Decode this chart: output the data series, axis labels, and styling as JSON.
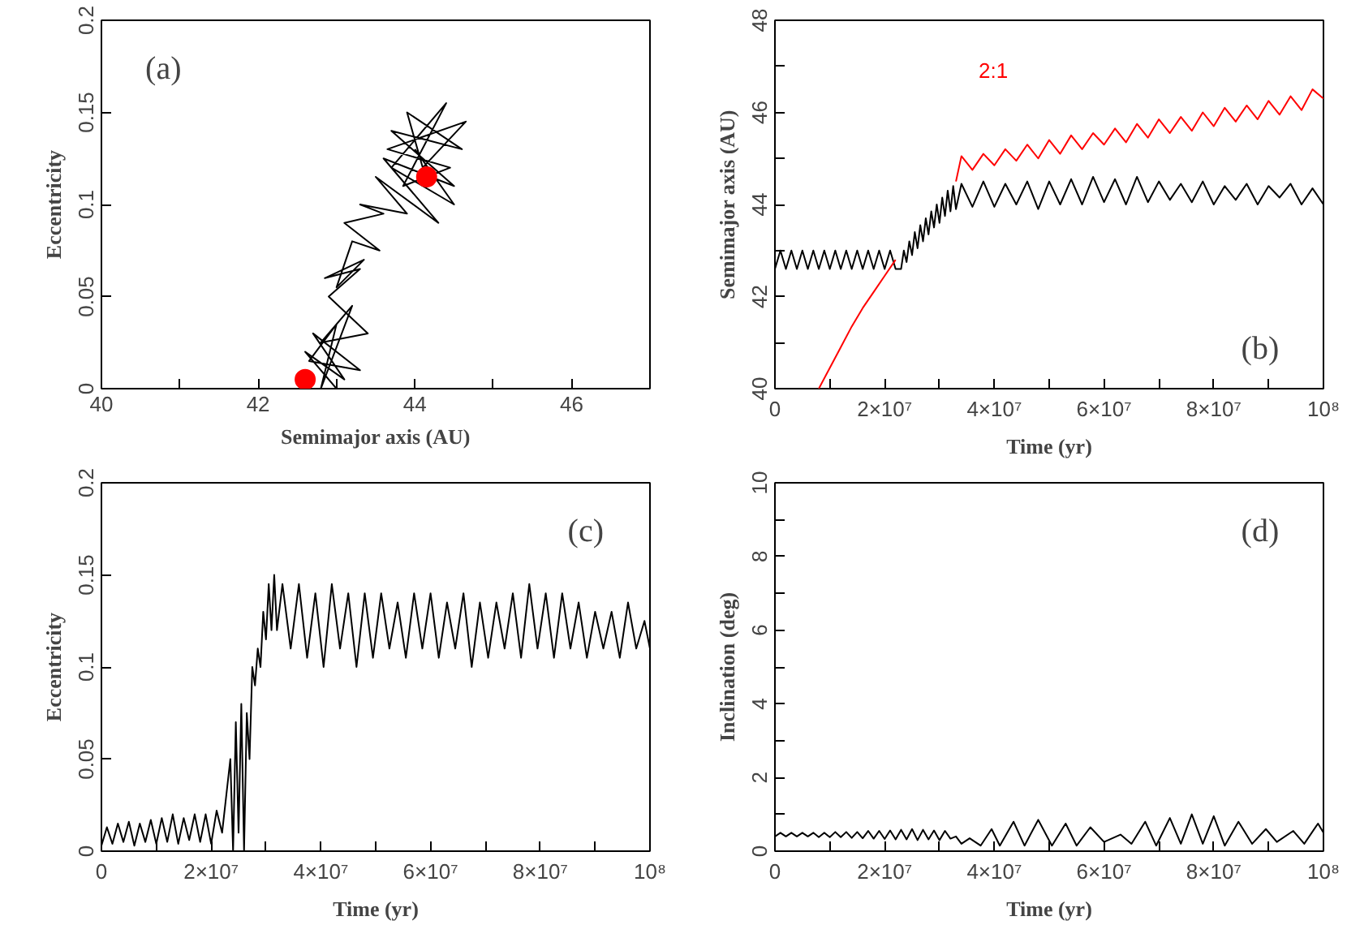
{
  "chart_data": [
    {
      "type": "line",
      "xlabel": "Semimajor axis (AU)",
      "ylabel": "Eccentricity",
      "annotations": [
        "(a)"
      ],
      "xlim": [
        40,
        47
      ],
      "ylim": [
        0,
        0.2
      ],
      "xticks": [
        40,
        {
          "value": 41,
          "label": null
        },
        42,
        {
          "value": 43,
          "label": null
        },
        44,
        {
          "value": 45,
          "label": null
        },
        46,
        {
          "value": 47,
          "label": null
        }
      ],
      "yticks": [
        0,
        0.05,
        0.1,
        0.15,
        0.2
      ],
      "series": [
        {
          "type": "line",
          "color": "#000000",
          "x": [
            43.0,
            42.6,
            43.1,
            42.7,
            43.3,
            42.65,
            43.0,
            42.8,
            43.2,
            42.8,
            43.4,
            42.9,
            43.3,
            42.85,
            43.35,
            43.0,
            43.2,
            43.55,
            43.1,
            43.6,
            43.3,
            43.9,
            43.5,
            44.3,
            43.6,
            44.5,
            43.7,
            44.6,
            43.9,
            44.1,
            44.65,
            43.65,
            44.45,
            43.85,
            44.4,
            43.7,
            44.5,
            44.0
          ],
          "values": [
            0.0,
            0.02,
            0.005,
            0.03,
            0.01,
            0.015,
            0.035,
            0.0,
            0.045,
            0.025,
            0.03,
            0.05,
            0.065,
            0.06,
            0.07,
            0.055,
            0.08,
            0.075,
            0.09,
            0.095,
            0.1,
            0.095,
            0.115,
            0.09,
            0.125,
            0.11,
            0.14,
            0.13,
            0.15,
            0.12,
            0.145,
            0.13,
            0.12,
            0.11,
            0.155,
            0.12,
            0.1,
            0.13
          ]
        },
        {
          "type": "scatter",
          "color": "#ff0000",
          "marker": "circle",
          "x": [
            42.6,
            44.15
          ],
          "values": [
            0.005,
            0.115
          ]
        }
      ]
    },
    {
      "type": "line",
      "xlabel": "Time (yr)",
      "ylabel": "Semimajor axis (AU)",
      "annotations": [
        "(b)"
      ],
      "xlim": [
        0,
        100000000.0
      ],
      "ylim": [
        40,
        48
      ],
      "xticks": [
        0,
        {
          "value": 10000000.0,
          "label": null
        },
        {
          "value": 20000000.0,
          "label": "2×10⁷"
        },
        {
          "value": 30000000.0,
          "label": null
        },
        {
          "value": 40000000.0,
          "label": "4×10⁷"
        },
        {
          "value": 50000000.0,
          "label": null
        },
        {
          "value": 60000000.0,
          "label": "6×10⁷"
        },
        {
          "value": 70000000.0,
          "label": null
        },
        {
          "value": 80000000.0,
          "label": "8×10⁷"
        },
        {
          "value": 90000000.0,
          "label": null
        },
        {
          "value": 100000000.0,
          "label": "10⁸"
        }
      ],
      "yticks": [
        40,
        {
          "value": 41,
          "label": null
        },
        42,
        {
          "value": 43,
          "label": null
        },
        44,
        {
          "value": 45,
          "label": null
        },
        46,
        {
          "value": 47,
          "label": null
        },
        48
      ],
      "series": [
        {
          "color": "#000000",
          "x": [
            0,
            1000000.0,
            2000000.0,
            3000000.0,
            4000000.0,
            5000000.0,
            6000000.0,
            7000000.0,
            8000000.0,
            9000000.0,
            10000000.0,
            11000000.0,
            12000000.0,
            13000000.0,
            14000000.0,
            15000000.0,
            16000000.0,
            17000000.0,
            18000000.0,
            19000000.0,
            20000000.0,
            21000000.0,
            22000000.0,
            23000000.0,
            23500000.0,
            24000000.0,
            24500000.0,
            25000000.0,
            25500000.0,
            26000000.0,
            26500000.0,
            27000000.0,
            27500000.0,
            28000000.0,
            28500000.0,
            29000000.0,
            29500000.0,
            30000000.0,
            30500000.0,
            31000000.0,
            31500000.0,
            32000000.0,
            32500000.0,
            33000000.0,
            34000000.0,
            36000000.0,
            38000000.0,
            40000000.0,
            42000000.0,
            44000000.0,
            46000000.0,
            48000000.0,
            50000000.0,
            52000000.0,
            54000000.0,
            56000000.0,
            58000000.0,
            60000000.0,
            62000000.0,
            64000000.0,
            66000000.0,
            68000000.0,
            70000000.0,
            72000000.0,
            74000000.0,
            76000000.0,
            78000000.0,
            80000000.0,
            82000000.0,
            84000000.0,
            86000000.0,
            88000000.0,
            90000000.0,
            92000000.0,
            94000000.0,
            96000000.0,
            98000000.0,
            100000000.0
          ],
          "values": [
            42.6,
            43.0,
            42.6,
            43.0,
            42.6,
            43.0,
            42.6,
            43.0,
            42.6,
            43.0,
            42.6,
            43.0,
            42.6,
            43.0,
            42.6,
            43.0,
            42.6,
            43.0,
            42.6,
            43.0,
            42.6,
            43.0,
            42.6,
            42.6,
            43.0,
            42.75,
            43.2,
            42.9,
            43.4,
            43.05,
            43.55,
            43.2,
            43.7,
            43.35,
            43.85,
            43.5,
            44.0,
            43.6,
            44.15,
            43.75,
            44.3,
            43.85,
            44.4,
            43.9,
            44.45,
            43.95,
            44.5,
            43.95,
            44.45,
            44.0,
            44.5,
            43.9,
            44.5,
            44.0,
            44.55,
            44.0,
            44.6,
            44.05,
            44.55,
            44.0,
            44.6,
            44.05,
            44.5,
            44.1,
            44.45,
            44.05,
            44.5,
            44.0,
            44.4,
            44.1,
            44.45,
            44.0,
            44.4,
            44.15,
            44.45,
            44.0,
            44.35,
            44.0
          ]
        },
        {
          "name": "2:1",
          "color": "#ff0000",
          "x": [
            8000000.0,
            10000000.0,
            12000000.0,
            14000000.0,
            16000000.0,
            18000000.0,
            20000000.0,
            22000000.0,
            27000000.0,
            33000000.0,
            34000000.0,
            36000000.0,
            38000000.0,
            40000000.0,
            42000000.0,
            44000000.0,
            46000000.0,
            48000000.0,
            50000000.0,
            52000000.0,
            54000000.0,
            56000000.0,
            58000000.0,
            60000000.0,
            62000000.0,
            64000000.0,
            66000000.0,
            68000000.0,
            70000000.0,
            72000000.0,
            74000000.0,
            76000000.0,
            78000000.0,
            80000000.0,
            82000000.0,
            84000000.0,
            86000000.0,
            88000000.0,
            90000000.0,
            92000000.0,
            94000000.0,
            96000000.0,
            98000000.0,
            100000000.0
          ],
          "values": [
            40.0,
            40.45,
            40.9,
            41.35,
            41.75,
            42.1,
            42.45,
            42.8,
            null,
            44.5,
            45.05,
            44.75,
            45.1,
            44.85,
            45.2,
            44.95,
            45.3,
            45.0,
            45.4,
            45.1,
            45.5,
            45.2,
            45.55,
            45.3,
            45.65,
            45.35,
            45.75,
            45.45,
            45.85,
            45.55,
            45.9,
            45.6,
            46.0,
            45.7,
            46.1,
            45.8,
            46.15,
            45.85,
            46.25,
            45.95,
            46.35,
            46.05,
            46.5,
            46.3
          ]
        }
      ]
    },
    {
      "type": "line",
      "xlabel": "Time (yr)",
      "ylabel": "Eccentricity",
      "annotations": [
        "(c)"
      ],
      "xlim": [
        0,
        100000000.0
      ],
      "ylim": [
        0,
        0.2
      ],
      "xticks": [
        0,
        {
          "value": 10000000.0,
          "label": null
        },
        {
          "value": 20000000.0,
          "label": "2×10⁷"
        },
        {
          "value": 30000000.0,
          "label": null
        },
        {
          "value": 40000000.0,
          "label": "4×10⁷"
        },
        {
          "value": 50000000.0,
          "label": null
        },
        {
          "value": 60000000.0,
          "label": "6×10⁷"
        },
        {
          "value": 70000000.0,
          "label": null
        },
        {
          "value": 80000000.0,
          "label": "8×10⁷"
        },
        {
          "value": 90000000.0,
          "label": null
        },
        {
          "value": 100000000.0,
          "label": "10⁸"
        }
      ],
      "yticks": [
        0,
        0.05,
        0.1,
        0.15,
        0.2
      ],
      "series": [
        {
          "color": "#000000",
          "x": [
            0,
            1000000.0,
            2000000.0,
            3000000.0,
            4000000.0,
            5000000.0,
            6000000.0,
            7000000.0,
            8000000.0,
            9000000.0,
            10000000.0,
            11000000.0,
            12000000.0,
            13000000.0,
            14000000.0,
            15000000.0,
            16000000.0,
            17000000.0,
            18000000.0,
            19000000.0,
            20000000.0,
            21000000.0,
            22000000.0,
            23500000.0,
            24000000.0,
            24500000.0,
            25000000.0,
            25500000.0,
            26000000.0,
            26500000.0,
            27000000.0,
            27500000.0,
            28000000.0,
            28500000.0,
            29000000.0,
            29500000.0,
            30000000.0,
            30500000.0,
            31000000.0,
            31500000.0,
            32000000.0,
            33000000.0,
            34500000.0,
            36000000.0,
            37500000.0,
            39000000.0,
            40500000.0,
            42000000.0,
            43500000.0,
            45000000.0,
            46500000.0,
            48000000.0,
            49500000.0,
            51000000.0,
            52500000.0,
            54000000.0,
            55500000.0,
            57000000.0,
            58500000.0,
            60000000.0,
            61500000.0,
            63000000.0,
            64500000.0,
            66000000.0,
            67500000.0,
            69000000.0,
            70500000.0,
            72000000.0,
            73500000.0,
            75000000.0,
            76500000.0,
            78000000.0,
            79500000.0,
            81000000.0,
            82500000.0,
            84000000.0,
            85500000.0,
            87000000.0,
            88500000.0,
            90000000.0,
            91500000.0,
            93000000.0,
            94500000.0,
            96000000.0,
            97500000.0,
            99000000.0,
            100000000.0
          ],
          "values": [
            0.003,
            0.013,
            0.004,
            0.015,
            0.005,
            0.016,
            0.003,
            0.015,
            0.005,
            0.017,
            0.004,
            0.018,
            0.005,
            0.02,
            0.004,
            0.018,
            0.006,
            0.02,
            0.005,
            0.02,
            0.004,
            0.022,
            0.01,
            0.05,
            0.0,
            0.07,
            0.01,
            0.08,
            0.0,
            0.075,
            0.05,
            0.1,
            0.09,
            0.11,
            0.1,
            0.13,
            0.115,
            0.145,
            0.12,
            0.15,
            0.12,
            0.145,
            0.11,
            0.145,
            0.105,
            0.14,
            0.1,
            0.145,
            0.11,
            0.14,
            0.1,
            0.14,
            0.105,
            0.14,
            0.11,
            0.135,
            0.105,
            0.14,
            0.11,
            0.14,
            0.105,
            0.135,
            0.11,
            0.14,
            0.1,
            0.135,
            0.105,
            0.135,
            0.11,
            0.14,
            0.105,
            0.145,
            0.11,
            0.14,
            0.105,
            0.14,
            0.11,
            0.135,
            0.105,
            0.13,
            0.11,
            0.13,
            0.105,
            0.135,
            0.11,
            0.125,
            0.11
          ]
        }
      ]
    },
    {
      "type": "line",
      "xlabel": "Time (yr)",
      "ylabel": "Inclination (deg)",
      "annotations": [
        "(d)"
      ],
      "xlim": [
        0,
        100000000.0
      ],
      "ylim": [
        0,
        10
      ],
      "xticks": [
        0,
        {
          "value": 10000000.0,
          "label": null
        },
        {
          "value": 20000000.0,
          "label": "2×10⁷"
        },
        {
          "value": 30000000.0,
          "label": null
        },
        {
          "value": 40000000.0,
          "label": "4×10⁷"
        },
        {
          "value": 50000000.0,
          "label": null
        },
        {
          "value": 60000000.0,
          "label": "6×10⁷"
        },
        {
          "value": 70000000.0,
          "label": null
        },
        {
          "value": 80000000.0,
          "label": "8×10⁷"
        },
        {
          "value": 90000000.0,
          "label": null
        },
        {
          "value": 100000000.0,
          "label": "10⁸"
        }
      ],
      "yticks": [
        0,
        {
          "value": 1,
          "label": null
        },
        2,
        {
          "value": 3,
          "label": null
        },
        4,
        {
          "value": 5,
          "label": null
        },
        6,
        {
          "value": 7,
          "label": null
        },
        8,
        {
          "value": 9,
          "label": null
        },
        10
      ],
      "series": [
        {
          "color": "#000000",
          "x": [
            0,
            1000000.0,
            2000000.0,
            3000000.0,
            4000000.0,
            5000000.0,
            6000000.0,
            7000000.0,
            8000000.0,
            9000000.0,
            10000000.0,
            11000000.0,
            12000000.0,
            13000000.0,
            14000000.0,
            15000000.0,
            16000000.0,
            17000000.0,
            18000000.0,
            19000000.0,
            20000000.0,
            21000000.0,
            22000000.0,
            23000000.0,
            24000000.0,
            25000000.0,
            26000000.0,
            27000000.0,
            28000000.0,
            29000000.0,
            30000000.0,
            31000000.0,
            32000000.0,
            33000000.0,
            34000000.0,
            35500000.0,
            37500000.0,
            39500000.0,
            41000000.0,
            43500000.0,
            45500000.0,
            48000000.0,
            50500000.0,
            53000000.0,
            55000000.0,
            57500000.0,
            60000000.0,
            63000000.0,
            65000000.0,
            67500000.0,
            69500000.0,
            72000000.0,
            74000000.0,
            76000000.0,
            78000000.0,
            80000000.0,
            82000000.0,
            84500000.0,
            87000000.0,
            89500000.0,
            91500000.0,
            94500000.0,
            96500000.0,
            99000000.0,
            100000000.0
          ],
          "values": [
            0.4,
            0.5,
            0.4,
            0.5,
            0.4,
            0.5,
            0.4,
            0.5,
            0.38,
            0.5,
            0.38,
            0.52,
            0.38,
            0.52,
            0.36,
            0.52,
            0.35,
            0.55,
            0.34,
            0.55,
            0.33,
            0.56,
            0.32,
            0.58,
            0.32,
            0.6,
            0.3,
            0.58,
            0.32,
            0.56,
            0.3,
            0.55,
            0.34,
            0.4,
            0.2,
            0.35,
            0.15,
            0.6,
            0.15,
            0.8,
            0.15,
            0.85,
            0.15,
            0.75,
            0.15,
            0.65,
            0.25,
            0.45,
            0.2,
            0.8,
            0.15,
            0.9,
            0.2,
            1.0,
            0.2,
            0.95,
            0.15,
            0.8,
            0.2,
            0.6,
            0.25,
            0.55,
            0.2,
            0.75,
            0.5
          ]
        }
      ]
    }
  ]
}
